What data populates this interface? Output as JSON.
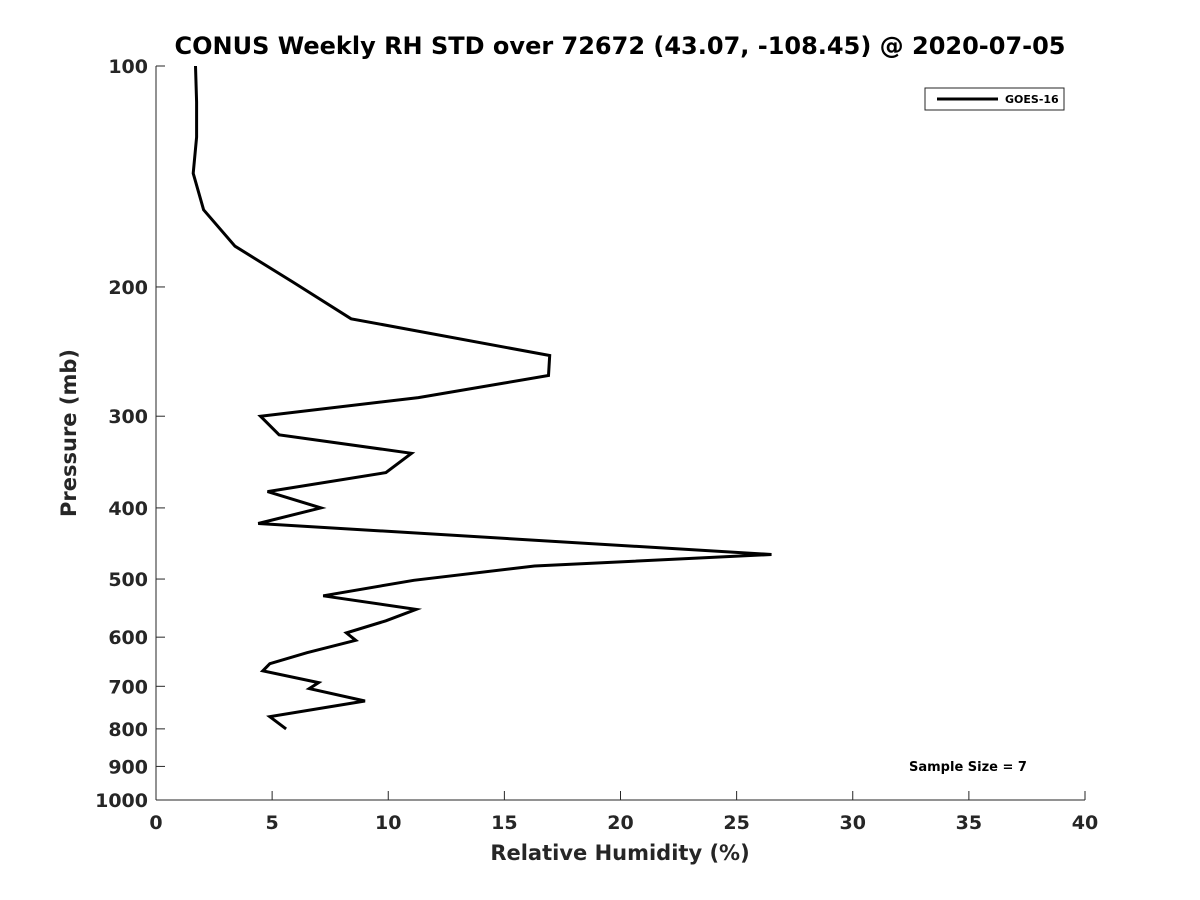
{
  "chart_data": {
    "type": "line",
    "title": "CONUS Weekly RH STD over 72672 (43.07, -108.45) @ 2020-07-05",
    "xlabel": "Relative Humidity (%)",
    "ylabel": "Pressure (mb)",
    "xlim": [
      0,
      40
    ],
    "ylim": [
      100,
      1000
    ],
    "yscale": "log",
    "y_reversed": true,
    "xticks": [
      "0",
      "5",
      "10",
      "15",
      "20",
      "25",
      "30",
      "35",
      "40"
    ],
    "yticks": [
      "100",
      "200",
      "300",
      "400",
      "500",
      "600",
      "700",
      "800",
      "900",
      "1000"
    ],
    "grid": false,
    "legend_position": "top-right",
    "series": [
      {
        "name": "GOES-16",
        "color": "#000000",
        "x": [
          1.7,
          1.75,
          1.75,
          1.6,
          2.05,
          3.4,
          5.9,
          8.4,
          16.95,
          16.9,
          11.3,
          4.5,
          5.3,
          11.0,
          9.9,
          4.8,
          7.1,
          4.4,
          26.5,
          16.3,
          11.1,
          7.2,
          11.2,
          9.9,
          8.2,
          8.6,
          6.5,
          4.9,
          4.6,
          7.0,
          6.6,
          9.0,
          4.9,
          5.6
        ],
        "y": [
          100,
          112,
          125,
          140,
          157,
          176,
          197,
          221,
          248,
          264,
          283,
          300,
          318,
          337,
          358,
          380,
          400,
          420,
          463,
          480,
          502,
          527,
          550,
          570,
          592,
          606,
          630,
          652,
          667,
          692,
          705,
          733,
          770,
          800
        ]
      }
    ],
    "annotations": [
      "Sample Size = 7"
    ]
  }
}
